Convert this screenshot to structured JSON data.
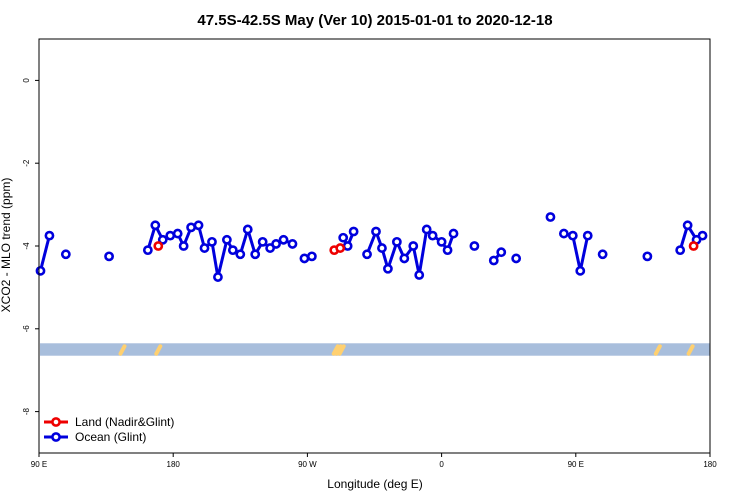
{
  "chart_data": {
    "type": "line",
    "title": "47.5S-42.5S May (Ver 10)   2015-01-01 to 2020-12-18",
    "xlabel": "Longitude (deg E)",
    "ylabel": "XCO2 - MLO trend (ppm)",
    "xlim": [
      90,
      540
    ],
    "ylim": [
      -9,
      1
    ],
    "x_ticks": [
      {
        "value": 90,
        "label": "90 E"
      },
      {
        "value": 180,
        "label": "180"
      },
      {
        "value": 270,
        "label": "90 W"
      },
      {
        "value": 360,
        "label": "0"
      },
      {
        "value": 450,
        "label": "90 E"
      },
      {
        "value": 540,
        "label": "180"
      }
    ],
    "y_ticks": [
      0,
      -2,
      -4,
      -6,
      -8
    ],
    "grid": false,
    "legend_placement": "bottom-left",
    "land_band": {
      "y_range": [
        -6.65,
        -6.35
      ],
      "color": "#a8bedc"
    },
    "land_highlights": [
      {
        "x": 146,
        "color": "#ffd070"
      },
      {
        "x": 170,
        "color": "#ffd070"
      },
      {
        "x": 289,
        "color": "#ffd070"
      },
      {
        "x": 291,
        "color": "#ffd070"
      },
      {
        "x": 293,
        "color": "#ffd070"
      },
      {
        "x": 505,
        "color": "#ffd070"
      },
      {
        "x": 527,
        "color": "#ffd070"
      }
    ],
    "series": [
      {
        "name": "Land (Nadir&Glint)",
        "color": "#ee0000",
        "segments": [
          [
            [
              170,
              -4.0
            ]
          ],
          [
            [
              288,
              -4.1
            ],
            [
              292,
              -4.05
            ]
          ],
          [
            [
              529,
              -4.0
            ]
          ]
        ]
      },
      {
        "name": "Ocean (Glint)",
        "color": "#0000dd",
        "segments": [
          [
            [
              91,
              -4.6
            ],
            [
              97,
              -3.75
            ]
          ],
          [
            [
              108,
              -4.2
            ]
          ],
          [
            [
              137,
              -4.25
            ]
          ],
          [
            [
              163,
              -4.1
            ],
            [
              168,
              -3.5
            ],
            [
              173,
              -3.85
            ],
            [
              178,
              -3.75
            ],
            [
              183,
              -3.7
            ],
            [
              187,
              -4.0
            ],
            [
              192,
              -3.55
            ],
            [
              197,
              -3.5
            ],
            [
              201,
              -4.05
            ],
            [
              206,
              -3.9
            ],
            [
              210,
              -4.75
            ],
            [
              216,
              -3.85
            ],
            [
              220,
              -4.1
            ],
            [
              225,
              -4.2
            ],
            [
              230,
              -3.6
            ],
            [
              235,
              -4.2
            ],
            [
              240,
              -3.9
            ],
            [
              245,
              -4.05
            ],
            [
              249,
              -3.95
            ],
            [
              254,
              -3.85
            ],
            [
              260,
              -3.95
            ]
          ],
          [
            [
              268,
              -4.3
            ],
            [
              273,
              -4.25
            ]
          ],
          [
            [
              294,
              -3.8
            ],
            [
              297,
              -4.0
            ],
            [
              301,
              -3.65
            ]
          ],
          [
            [
              310,
              -4.2
            ],
            [
              316,
              -3.65
            ],
            [
              320,
              -4.05
            ],
            [
              324,
              -4.55
            ],
            [
              330,
              -3.9
            ],
            [
              335,
              -4.3
            ],
            [
              341,
              -4.0
            ],
            [
              345,
              -4.7
            ],
            [
              350,
              -3.6
            ],
            [
              354,
              -3.75
            ],
            [
              360,
              -3.9
            ],
            [
              364,
              -4.1
            ],
            [
              368,
              -3.7
            ]
          ],
          [
            [
              382,
              -4.0
            ]
          ],
          [
            [
              395,
              -4.35
            ],
            [
              400,
              -4.15
            ]
          ],
          [
            [
              410,
              -4.3
            ]
          ],
          [
            [
              433,
              -3.3
            ]
          ],
          [
            [
              442,
              -3.7
            ],
            [
              448,
              -3.75
            ],
            [
              453,
              -4.6
            ],
            [
              458,
              -3.75
            ]
          ],
          [
            [
              468,
              -4.2
            ]
          ],
          [
            [
              498,
              -4.25
            ]
          ],
          [
            [
              520,
              -4.1
            ],
            [
              525,
              -3.5
            ],
            [
              531,
              -3.85
            ],
            [
              535,
              -3.75
            ]
          ]
        ]
      }
    ]
  }
}
